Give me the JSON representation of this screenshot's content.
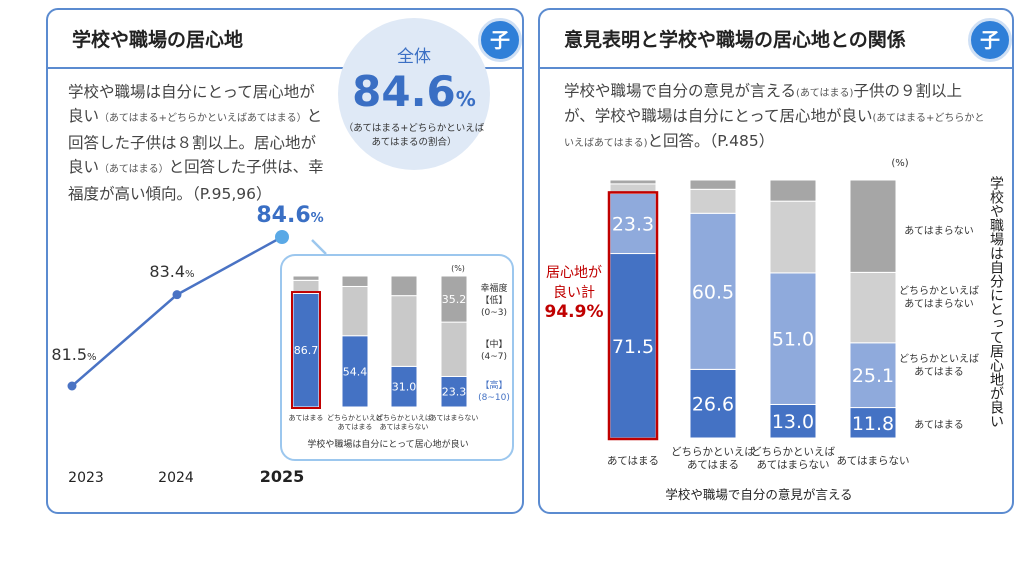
{
  "left": {
    "title": "学校や職場の居心地",
    "badge": "子",
    "body_1": "学校や職場は自分にとって居心地が",
    "body_2a": "良い",
    "body_2b": "（あてはまる+どちらかといえばあてはまる）",
    "body_2c": "と",
    "body_3": "回答した子供は８割以上。居心地が",
    "body_4a": "良い",
    "body_4b": "（あてはまる）",
    "body_4c": "と回答した子供は、幸",
    "body_5": "福度が高い傾向。（P.95,96）",
    "circle": {
      "label": "全体",
      "value": "84.6",
      "unit": "%",
      "note_1": "（あてはまる+どちらかといえば",
      "note_2": "あてはまるの割合）"
    }
  },
  "right": {
    "title": "意見表明と学校や職場の居心地との関係",
    "badge": "子",
    "body_1a": "学校や職場で自分の意見が言える",
    "body_1b": "(あてはまる)",
    "body_1c": "子供の９割以上",
    "body_2a": "が、学校や職場は自分にとって居心地が良い",
    "body_2b": "(あてはまる+どちらかと",
    "body_3a": "いえばあてはまる)",
    "body_3b": "と回答。（P.485）",
    "callout_1": "居心地が",
    "callout_2": "良い計",
    "callout_value": "94.9%"
  },
  "chart_data": [
    {
      "type": "line",
      "x": [
        "2023",
        "2024",
        "2025"
      ],
      "values": [
        81.5,
        83.4,
        84.6
      ],
      "point_labels": [
        "81.5%",
        "83.4%",
        "84.6%"
      ],
      "ylim": [
        78,
        86
      ],
      "colors": {
        "line": "#4a73c4",
        "highlight": "#5aa9e6"
      }
    },
    {
      "type": "bar",
      "stacked": true,
      "unit": "(%)",
      "categories": [
        "あてはまる",
        "どちらかといえば\nあてはまる",
        "どちらかといえば\nあてはまらない",
        "あてはまらない"
      ],
      "xlabel": "学校や職場は自分にとって居心地が良い",
      "series": [
        {
          "name": "【高】(8~10)",
          "values": [
            86.7,
            54.4,
            31.0,
            23.3
          ],
          "color": "#4472c4"
        },
        {
          "name": "【中】(4~7)",
          "values": [
            10.0,
            37.6,
            54.0,
            41.5
          ],
          "color": "#c9c9c9"
        },
        {
          "name": "幸福度【低】(0~3)",
          "values": [
            3.3,
            8.0,
            15.0,
            35.2
          ],
          "color": "#a6a6a6"
        }
      ],
      "data_labels": [
        [
          "86.7",
          "54.4",
          "31.0",
          "23.3"
        ],
        [
          "",
          "",
          "",
          ""
        ],
        [
          "",
          "",
          "",
          "35.2"
        ]
      ],
      "legend": [
        "幸福度",
        "【低】",
        "(0~3)",
        "【中】",
        "(4~7)",
        "【高】",
        "(8~10)"
      ]
    },
    {
      "type": "bar",
      "stacked": true,
      "unit": "(%)",
      "categories": [
        "あてはまる",
        "どちらかといえば\nあてはまる",
        "どちらかといえば\nあてはまらない",
        "あてはまらない"
      ],
      "xlabel": "学校や職場で自分の意見が言える",
      "ylabel": "学校や職場は自分にとって居心地が良い",
      "series": [
        {
          "name": "あてはまる",
          "values": [
            71.5,
            26.6,
            13.0,
            11.8
          ],
          "color": "#4472c4"
        },
        {
          "name": "どちらかといえば\nあてはまる",
          "values": [
            23.3,
            60.5,
            51.0,
            25.1
          ],
          "color": "#8faadc"
        },
        {
          "name": "どちらかといえば\nあてはまらない",
          "values": [
            3.7,
            9.3,
            27.8,
            27.3
          ],
          "color": "#d0d0d0"
        },
        {
          "name": "あてはまらない",
          "values": [
            1.5,
            3.6,
            8.2,
            35.8
          ],
          "color": "#a6a6a6"
        }
      ],
      "data_labels": [
        [
          "71.5",
          "26.6",
          "13.0",
          "11.8"
        ],
        [
          "23.3",
          "60.5",
          "51.0",
          "25.1"
        ],
        [
          "",
          "",
          "",
          ""
        ],
        [
          "",
          "",
          "",
          ""
        ]
      ]
    }
  ]
}
